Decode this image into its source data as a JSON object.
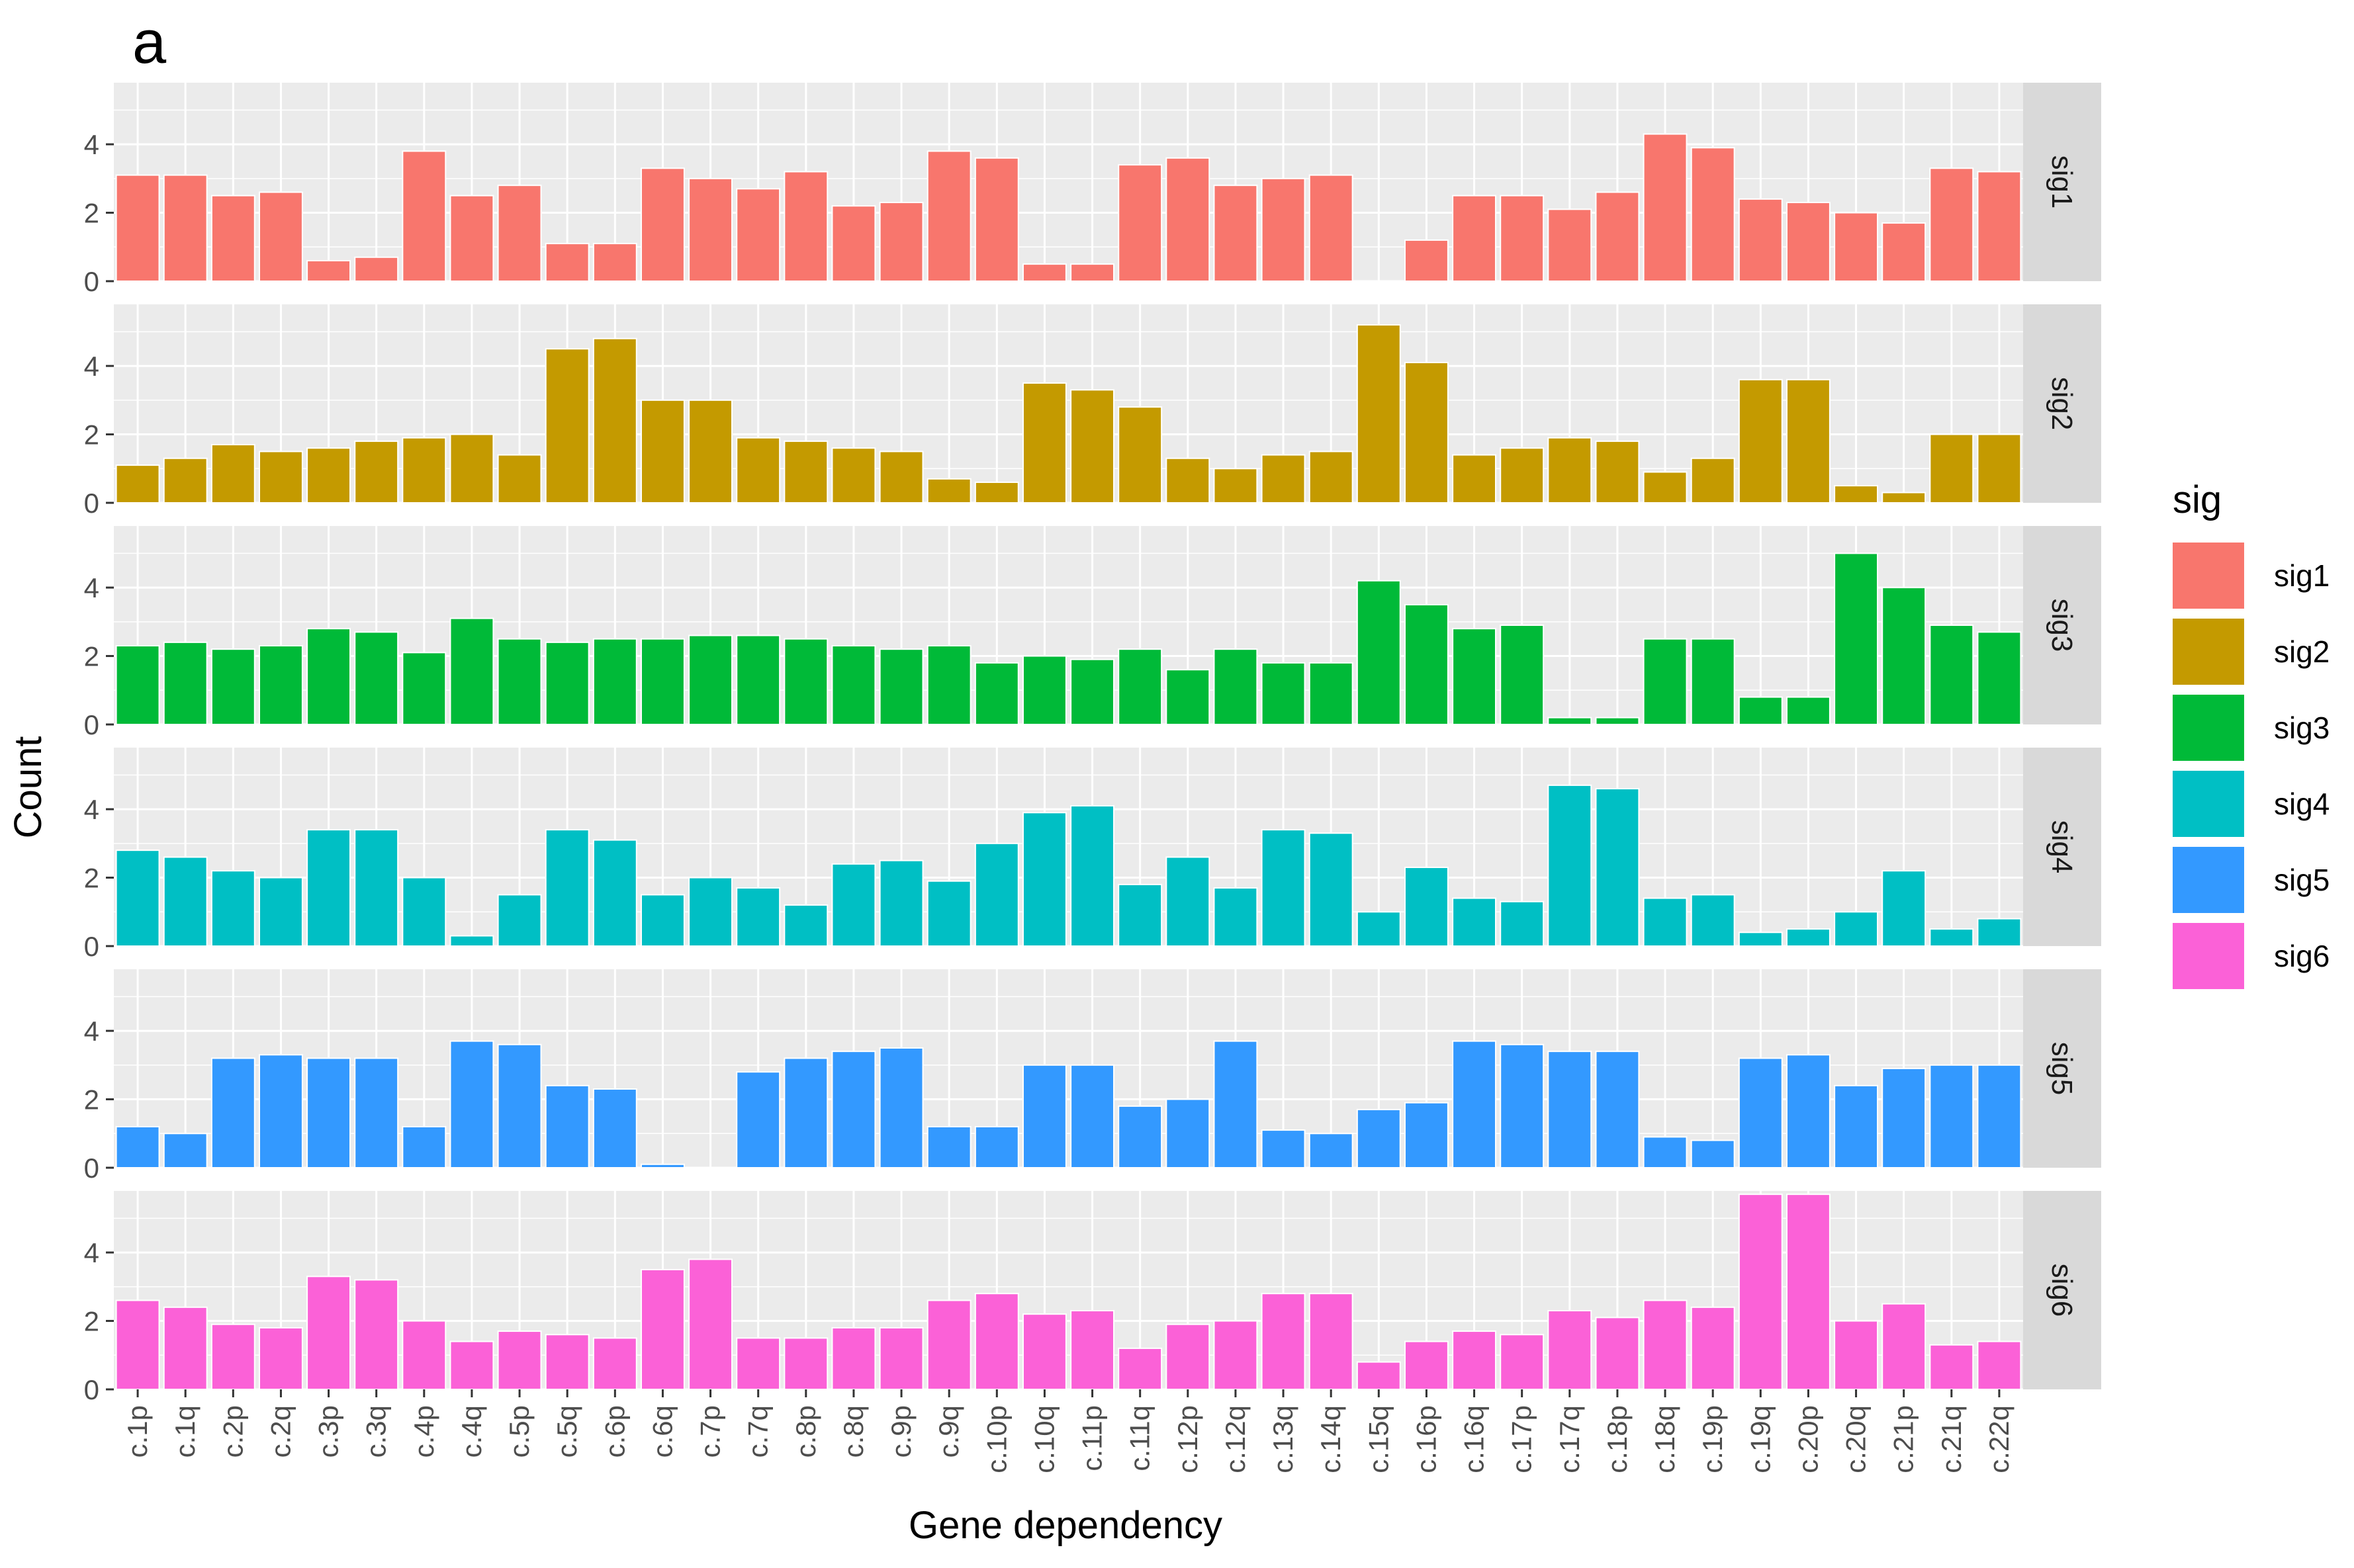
{
  "panel_label": "a",
  "chart_data": {
    "type": "bar",
    "facet": "sig",
    "xlabel": "Gene dependency",
    "ylabel": "Count",
    "legend_title": "sig",
    "legend_position": "right",
    "grid": true,
    "ylim": [
      0,
      5.8
    ],
    "yticks": [
      0,
      2,
      4
    ],
    "categories": [
      "c.1p",
      "c.1q",
      "c.2p",
      "c.2q",
      "c.3p",
      "c.3q",
      "c.4p",
      "c.4q",
      "c.5p",
      "c.5q",
      "c.6p",
      "c.6q",
      "c.7p",
      "c.7q",
      "c.8p",
      "c.8q",
      "c.9p",
      "c.9q",
      "c.10p",
      "c.10q",
      "c.11p",
      "c.11q",
      "c.12p",
      "c.12q",
      "c.13q",
      "c.14q",
      "c.15q",
      "c.16p",
      "c.16q",
      "c.17p",
      "c.17q",
      "c.18p",
      "c.18q",
      "c.19p",
      "c.19q",
      "c.20p",
      "c.20q",
      "c.21p",
      "c.21q",
      "c.22q"
    ],
    "series": [
      {
        "name": "sig1",
        "color": "#f8766d",
        "values": [
          3.1,
          3.1,
          2.5,
          2.6,
          0.6,
          0.7,
          3.8,
          2.5,
          2.8,
          1.1,
          1.1,
          3.3,
          3.0,
          2.7,
          3.2,
          2.2,
          2.3,
          3.8,
          3.6,
          0.5,
          0.5,
          3.4,
          3.6,
          2.8,
          3.0,
          3.1,
          0.0,
          1.2,
          2.5,
          2.5,
          2.1,
          2.6,
          4.3,
          3.9,
          2.4,
          2.3,
          2.0,
          1.7,
          3.3,
          3.2
        ]
      },
      {
        "name": "sig2",
        "color": "#c49a00",
        "values": [
          1.1,
          1.3,
          1.7,
          1.5,
          1.6,
          1.8,
          1.9,
          2.0,
          1.4,
          4.5,
          4.8,
          3.0,
          3.0,
          1.9,
          1.8,
          1.6,
          1.5,
          0.7,
          0.6,
          3.5,
          3.3,
          2.8,
          1.3,
          1.0,
          1.4,
          1.5,
          5.2,
          4.1,
          1.4,
          1.6,
          1.9,
          1.8,
          0.9,
          1.3,
          3.6,
          3.6,
          0.5,
          0.3,
          2.0,
          2.0
        ]
      },
      {
        "name": "sig3",
        "color": "#00ba38",
        "values": [
          2.3,
          2.4,
          2.2,
          2.3,
          2.8,
          2.7,
          2.1,
          3.1,
          2.5,
          2.4,
          2.5,
          2.5,
          2.6,
          2.6,
          2.5,
          2.3,
          2.2,
          2.3,
          1.8,
          2.0,
          1.9,
          2.2,
          1.6,
          2.2,
          1.8,
          1.8,
          4.2,
          3.5,
          2.8,
          2.9,
          0.2,
          0.2,
          2.5,
          2.5,
          0.8,
          0.8,
          5.0,
          4.0,
          2.9,
          2.7
        ]
      },
      {
        "name": "sig4",
        "color": "#00bfc4",
        "values": [
          2.8,
          2.6,
          2.2,
          2.0,
          3.4,
          3.4,
          2.0,
          0.3,
          1.5,
          3.4,
          3.1,
          1.5,
          2.0,
          1.7,
          1.2,
          2.4,
          2.5,
          1.9,
          3.0,
          3.9,
          4.1,
          1.8,
          2.6,
          1.7,
          3.4,
          3.3,
          1.0,
          2.3,
          1.4,
          1.3,
          4.7,
          4.6,
          1.4,
          1.5,
          0.4,
          0.5,
          1.0,
          2.2,
          0.5,
          0.8
        ]
      },
      {
        "name": "sig5",
        "color": "#3399ff",
        "values": [
          1.2,
          1.0,
          3.2,
          3.3,
          3.2,
          3.2,
          1.2,
          3.7,
          3.6,
          2.4,
          2.3,
          0.1,
          0.0,
          2.8,
          3.2,
          3.4,
          3.5,
          1.2,
          1.2,
          3.0,
          3.0,
          1.8,
          2.0,
          3.7,
          1.1,
          1.0,
          1.7,
          1.9,
          3.7,
          3.6,
          3.4,
          3.4,
          0.9,
          0.8,
          3.2,
          3.3,
          2.4,
          2.9,
          3.0,
          3.0
        ]
      },
      {
        "name": "sig6",
        "color": "#fb61d7",
        "values": [
          2.6,
          2.4,
          1.9,
          1.8,
          3.3,
          3.2,
          2.0,
          1.4,
          1.7,
          1.6,
          1.5,
          3.5,
          3.8,
          1.5,
          1.5,
          1.8,
          1.8,
          2.6,
          2.8,
          2.2,
          2.3,
          1.2,
          1.9,
          2.0,
          2.8,
          2.8,
          0.8,
          1.4,
          1.7,
          1.6,
          2.3,
          2.1,
          2.6,
          2.4,
          5.7,
          5.7,
          2.0,
          2.5,
          1.3,
          1.4
        ]
      }
    ]
  }
}
